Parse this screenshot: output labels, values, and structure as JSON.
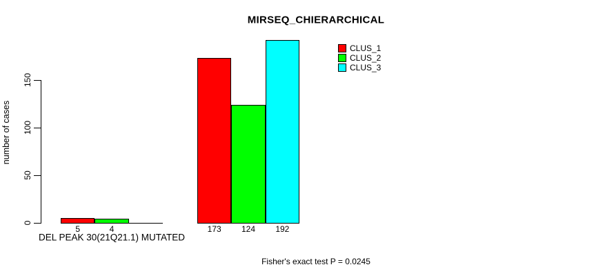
{
  "chart_data": {
    "type": "bar",
    "title": "MIRSEQ_CHIERARCHICAL",
    "ylabel": "number of cases",
    "xlabel": "",
    "yticks": [
      0,
      50,
      100,
      150
    ],
    "ylim": [
      0,
      192
    ],
    "grid": false,
    "legend_position": "right",
    "categories": [
      "DEL PEAK 30(21Q21.1) MUTATED",
      ""
    ],
    "series": [
      {
        "name": "CLUS_1",
        "color": "#FF0000",
        "values": [
          5,
          173
        ]
      },
      {
        "name": "CLUS_2",
        "color": "#00FF00",
        "values": [
          4,
          124
        ]
      },
      {
        "name": "CLUS_3",
        "color": "#00FFFF",
        "values": [
          0,
          192
        ]
      }
    ],
    "bar_labels": [
      [
        "5",
        "173"
      ],
      [
        "4",
        "124"
      ],
      [
        "",
        "192"
      ]
    ],
    "annotation": "Fisher's exact test P = 0.0245"
  }
}
